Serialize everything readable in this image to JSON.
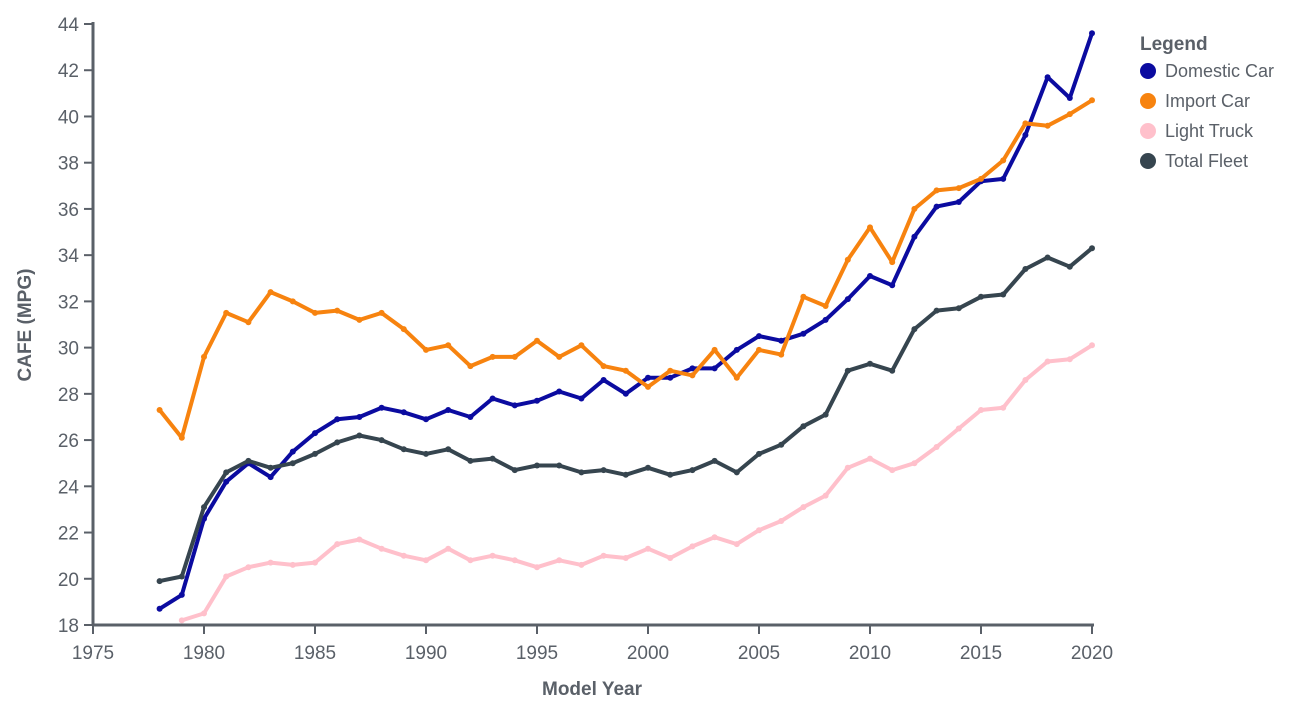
{
  "chart_data": {
    "type": "line",
    "title": "",
    "xlabel": "Model Year",
    "ylabel": "CAFE (MPG)",
    "xlim": [
      1975,
      2020
    ],
    "ylim": [
      18,
      44
    ],
    "x_ticks": [
      "1975",
      "1980",
      "1985",
      "1990",
      "1995",
      "2000",
      "2005",
      "2010",
      "2015",
      "2020"
    ],
    "y_ticks": [
      "18",
      "20",
      "22",
      "24",
      "26",
      "28",
      "30",
      "32",
      "34",
      "36",
      "38",
      "40",
      "42",
      "44"
    ],
    "grid": false,
    "legend": {
      "title": "Legend",
      "position": "right"
    },
    "series": [
      {
        "name": "Domestic Car",
        "color": "#0b0ba0",
        "x": [
          1978,
          1979,
          1980,
          1981,
          1982,
          1983,
          1984,
          1985,
          1986,
          1987,
          1988,
          1989,
          1990,
          1991,
          1992,
          1993,
          1994,
          1995,
          1996,
          1997,
          1998,
          1999,
          2000,
          2001,
          2002,
          2003,
          2004,
          2005,
          2006,
          2007,
          2008,
          2009,
          2010,
          2011,
          2012,
          2013,
          2014,
          2015,
          2016,
          2017,
          2018,
          2019,
          2020
        ],
        "values": [
          18.7,
          19.3,
          22.6,
          24.2,
          25.0,
          24.4,
          25.5,
          26.3,
          26.9,
          27.0,
          27.4,
          27.2,
          26.9,
          27.3,
          27.0,
          27.8,
          27.5,
          27.7,
          28.1,
          27.8,
          28.6,
          28.0,
          28.7,
          28.7,
          29.1,
          29.1,
          29.9,
          30.5,
          30.3,
          30.6,
          31.2,
          32.1,
          33.1,
          32.7,
          34.8,
          36.1,
          36.3,
          37.2,
          37.3,
          39.2,
          41.7,
          40.8,
          43.6
        ]
      },
      {
        "name": "Import Car",
        "color": "#f7830f",
        "x": [
          1978,
          1979,
          1980,
          1981,
          1982,
          1983,
          1984,
          1985,
          1986,
          1987,
          1988,
          1989,
          1990,
          1991,
          1992,
          1993,
          1994,
          1995,
          1996,
          1997,
          1998,
          1999,
          2000,
          2001,
          2002,
          2003,
          2004,
          2005,
          2006,
          2007,
          2008,
          2009,
          2010,
          2011,
          2012,
          2013,
          2014,
          2015,
          2016,
          2017,
          2018,
          2019,
          2020
        ],
        "values": [
          27.3,
          26.1,
          29.6,
          31.5,
          31.1,
          32.4,
          32.0,
          31.5,
          31.6,
          31.2,
          31.5,
          30.8,
          29.9,
          30.1,
          29.2,
          29.6,
          29.6,
          30.3,
          29.6,
          30.1,
          29.2,
          29.0,
          28.3,
          29.0,
          28.8,
          29.9,
          28.7,
          29.9,
          29.7,
          32.2,
          31.8,
          33.8,
          35.2,
          33.7,
          36.0,
          36.8,
          36.9,
          37.3,
          38.1,
          39.7,
          39.6,
          40.1,
          40.7
        ]
      },
      {
        "name": "Light Truck",
        "color": "#ffc0cb",
        "x": [
          1979,
          1980,
          1981,
          1982,
          1983,
          1984,
          1985,
          1986,
          1987,
          1988,
          1989,
          1990,
          1991,
          1992,
          1993,
          1994,
          1995,
          1996,
          1997,
          1998,
          1999,
          2000,
          2001,
          2002,
          2003,
          2004,
          2005,
          2006,
          2007,
          2008,
          2009,
          2010,
          2011,
          2012,
          2013,
          2014,
          2015,
          2016,
          2017,
          2018,
          2019,
          2020
        ],
        "values": [
          18.2,
          18.5,
          20.1,
          20.5,
          20.7,
          20.6,
          20.7,
          21.5,
          21.7,
          21.3,
          21.0,
          20.8,
          21.3,
          20.8,
          21.0,
          20.8,
          20.5,
          20.8,
          20.6,
          21.0,
          20.9,
          21.3,
          20.9,
          21.4,
          21.8,
          21.5,
          22.1,
          22.5,
          23.1,
          23.6,
          24.8,
          25.2,
          24.7,
          25.0,
          25.7,
          26.5,
          27.3,
          27.4,
          28.6,
          29.4,
          29.5,
          30.1
        ]
      },
      {
        "name": "Total Fleet",
        "color": "#36454f",
        "x": [
          1978,
          1979,
          1980,
          1981,
          1982,
          1983,
          1984,
          1985,
          1986,
          1987,
          1988,
          1989,
          1990,
          1991,
          1992,
          1993,
          1994,
          1995,
          1996,
          1997,
          1998,
          1999,
          2000,
          2001,
          2002,
          2003,
          2004,
          2005,
          2006,
          2007,
          2008,
          2009,
          2010,
          2011,
          2012,
          2013,
          2014,
          2015,
          2016,
          2017,
          2018,
          2019,
          2020
        ],
        "values": [
          19.9,
          20.1,
          23.1,
          24.6,
          25.1,
          24.8,
          25.0,
          25.4,
          25.9,
          26.2,
          26.0,
          25.6,
          25.4,
          25.6,
          25.1,
          25.2,
          24.7,
          24.9,
          24.9,
          24.6,
          24.7,
          24.5,
          24.8,
          24.5,
          24.7,
          25.1,
          24.6,
          25.4,
          25.8,
          26.6,
          27.1,
          29.0,
          29.3,
          29.0,
          30.8,
          31.6,
          31.7,
          32.2,
          32.3,
          33.4,
          33.9,
          33.5,
          34.3
        ]
      }
    ]
  }
}
